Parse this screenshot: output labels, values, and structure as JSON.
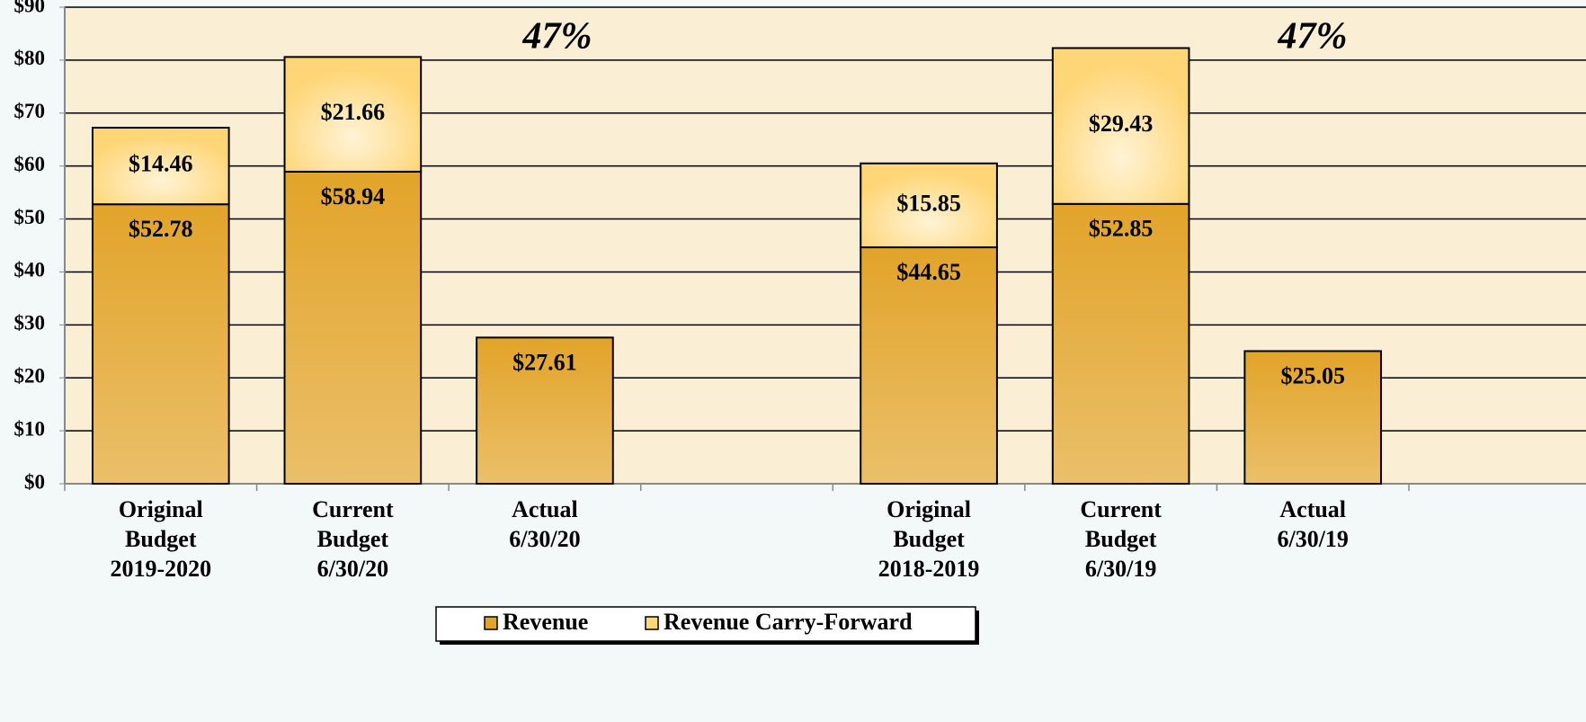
{
  "chart_data": {
    "type": "stacked_bar",
    "categories": [
      [
        "Original",
        "Budget",
        "2019-2020"
      ],
      [
        "Current",
        "Budget",
        "6/30/20"
      ],
      [
        "Actual",
        "6/30/20"
      ],
      null,
      [
        "Original",
        "Budget",
        "2018-2019"
      ],
      [
        "Current",
        "Budget",
        "6/30/19"
      ],
      [
        "Actual",
        "6/30/19"
      ]
    ],
    "series": [
      {
        "name": "Revenue",
        "color": "#e2a42a",
        "values": [
          52.78,
          58.94,
          27.61,
          null,
          44.65,
          52.85,
          25.05
        ],
        "value_labels": [
          "$52.78",
          "$58.94",
          "$27.61",
          null,
          "$44.65",
          "$52.85",
          "$25.05"
        ]
      },
      {
        "name": "Revenue Carry-Forward",
        "color": "#ffd677",
        "values": [
          14.46,
          21.66,
          null,
          null,
          15.85,
          29.43,
          null
        ],
        "value_labels": [
          "$14.46",
          "$21.66",
          null,
          null,
          "$15.85",
          "$29.43",
          null
        ]
      }
    ],
    "annotations": [
      "47%",
      "47%"
    ],
    "ylim": [
      0,
      90
    ],
    "yticks": [
      {
        "value": 0,
        "label": "$0"
      },
      {
        "value": 10,
        "label": "$10"
      },
      {
        "value": 20,
        "label": "$20"
      },
      {
        "value": 30,
        "label": "$30"
      },
      {
        "value": 40,
        "label": "$40"
      },
      {
        "value": 50,
        "label": "$50"
      },
      {
        "value": 60,
        "label": "$60"
      },
      {
        "value": 70,
        "label": "$70"
      },
      {
        "value": 80,
        "label": "$80"
      },
      {
        "value": 90,
        "label": "$90"
      }
    ],
    "grid": true,
    "legend": "bottom"
  }
}
